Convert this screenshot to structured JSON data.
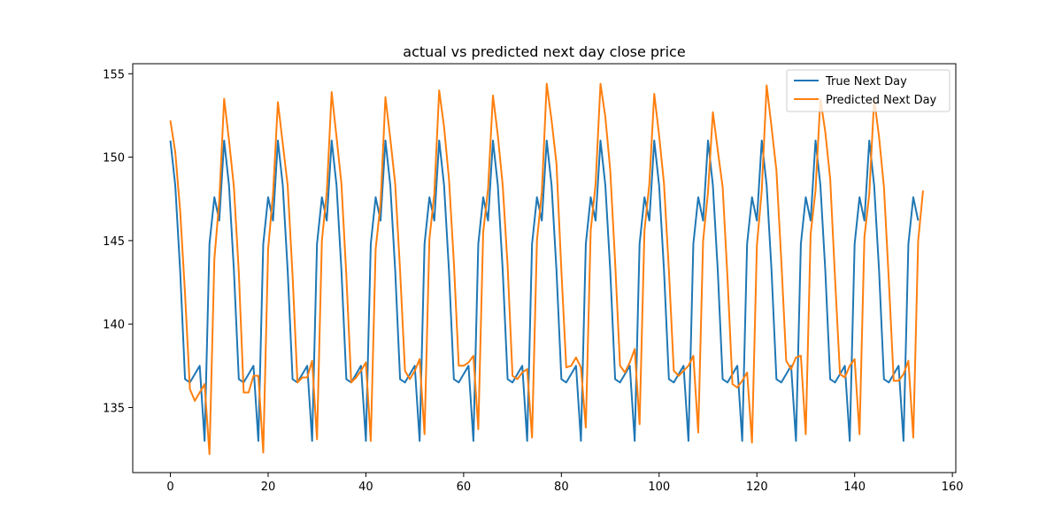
{
  "chart_data": {
    "type": "line",
    "title": "actual vs predicted next day close price",
    "xlabel": "",
    "ylabel": "",
    "xlim": [
      -7.7,
      160.7
    ],
    "ylim": [
      131.1,
      155.6
    ],
    "xticks": [
      0,
      20,
      40,
      60,
      80,
      100,
      120,
      140,
      160
    ],
    "yticks": [
      135,
      140,
      145,
      150,
      155
    ],
    "grid": false,
    "legend": "top-right",
    "series": [
      {
        "name": "True Next Day",
        "color": "#1f77b4",
        "pattern": [
          151.0,
          148.3,
          143.2,
          136.7,
          136.5,
          137.0,
          137.5,
          133.0,
          144.8,
          147.6,
          146.2
        ],
        "length": 154
      },
      {
        "name": "Predicted Next Day",
        "color": "#ff7f0e",
        "values": [
          152.2,
          150.3,
          146.8,
          141.8,
          136.1,
          135.4,
          135.9,
          136.4,
          132.2,
          143.9,
          147.4,
          153.5,
          151.0,
          148.2,
          143.1,
          135.9,
          135.9,
          136.9,
          136.9,
          132.3,
          144.5,
          147.8,
          153.3,
          150.8,
          148.3,
          142.9,
          136.5,
          136.8,
          136.8,
          137.8,
          133.1,
          145.0,
          147.9,
          153.9,
          151.2,
          148.4,
          142.9,
          136.5,
          136.8,
          137.2,
          137.7,
          133.0,
          144.5,
          147.2,
          153.6,
          151.1,
          148.4,
          143.2,
          137.2,
          136.7,
          137.2,
          137.9,
          133.4,
          145.1,
          147.8,
          154.0,
          151.8,
          148.7,
          143.7,
          137.5,
          137.5,
          137.7,
          138.1,
          133.7,
          145.5,
          148.1,
          153.7,
          151.3,
          148.3,
          143.5,
          136.9,
          136.7,
          137.1,
          137.3,
          133.2,
          145.0,
          147.9,
          154.4,
          152.2,
          149.6,
          143.2,
          137.4,
          137.5,
          138.0,
          137.4,
          133.8,
          145.6,
          148.4,
          154.4,
          152.4,
          149.2,
          143.7,
          137.5,
          137.1,
          137.7,
          138.5,
          134.0,
          145.6,
          148.4,
          153.8,
          151.3,
          148.4,
          143.2,
          137.2,
          136.9,
          137.2,
          137.5,
          138.1,
          133.5,
          145.0,
          147.9,
          152.7,
          150.4,
          148.2,
          142.7,
          136.4,
          136.2,
          136.6,
          137.1,
          132.9,
          144.7,
          148.0,
          154.3,
          151.8,
          149.2,
          143.8,
          137.8,
          137.3,
          138.0,
          138.1,
          133.4,
          145.4,
          148.0,
          153.5,
          151.5,
          148.7,
          142.7,
          137.0,
          136.8,
          137.5,
          137.9,
          133.4,
          145.2,
          147.8,
          153.5,
          151.2,
          148.2,
          142.6,
          136.6,
          136.6,
          137.0,
          137.8,
          133.2,
          145.0,
          148.0
        ]
      }
    ]
  }
}
